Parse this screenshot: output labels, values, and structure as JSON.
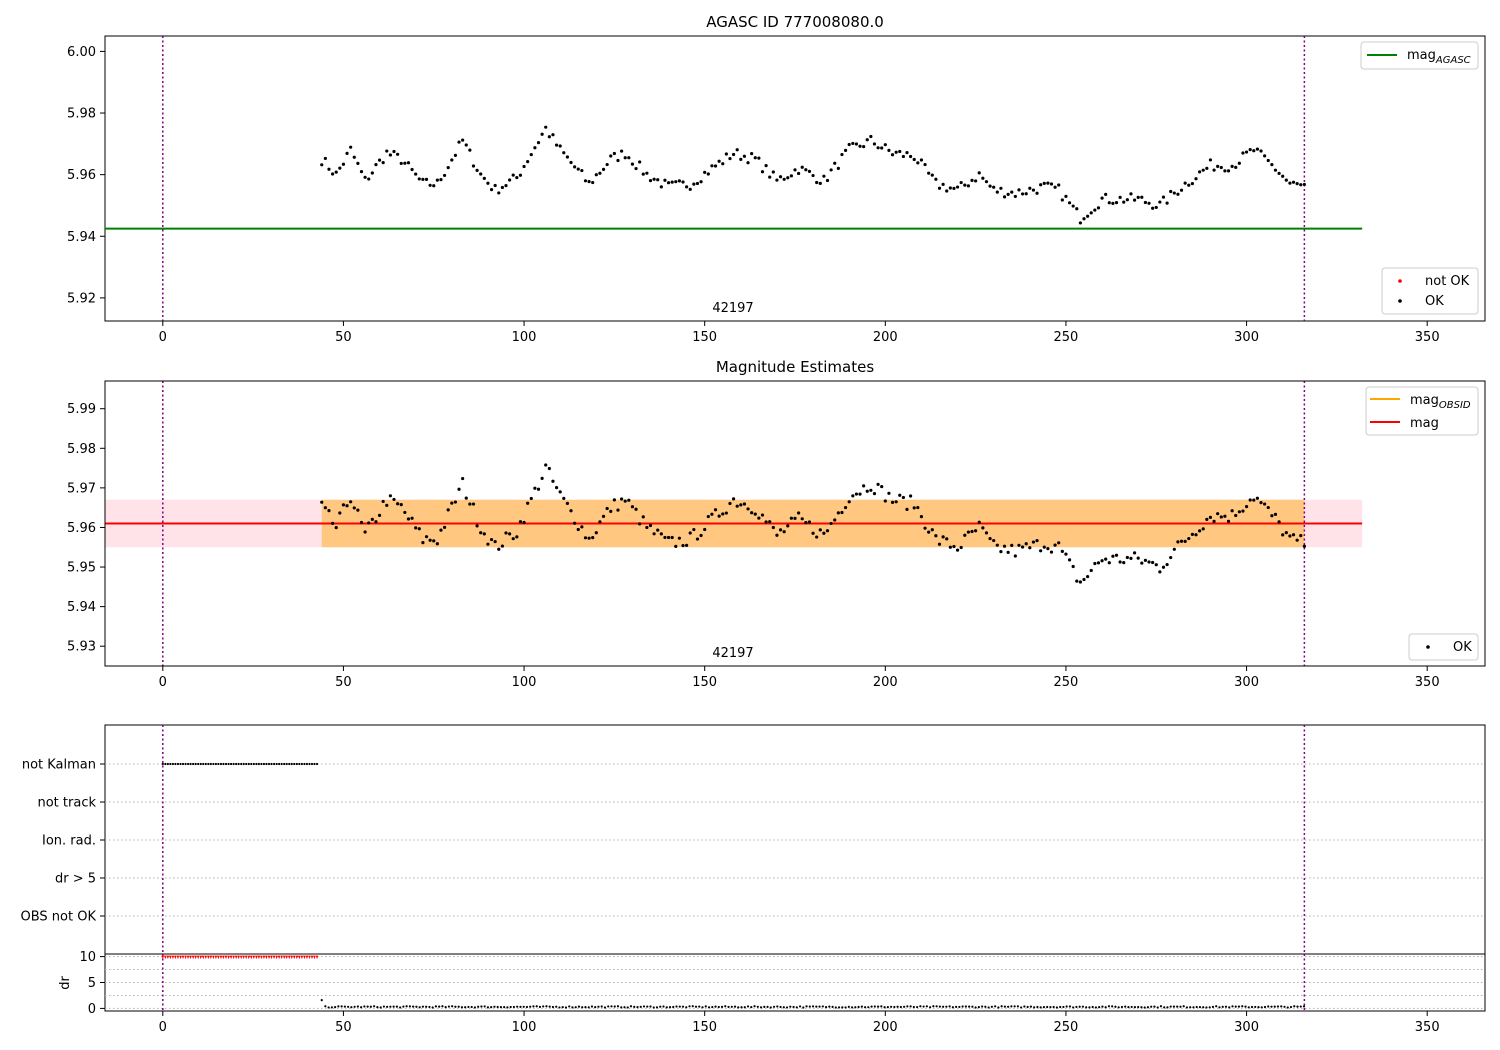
{
  "chart_data": [
    {
      "type": "scatter",
      "title": "AGASC ID 777008080.0",
      "xlim": [
        -16,
        366
      ],
      "ylim": [
        5.9125,
        6.005
      ],
      "xticks": [
        0,
        50,
        100,
        150,
        200,
        250,
        300,
        350
      ],
      "yticks": [
        5.92,
        5.94,
        5.96,
        5.98,
        6.0
      ],
      "ytick_labels": [
        "5.92",
        "5.94",
        "5.96",
        "5.98",
        "6.00"
      ],
      "obsid_label": "42197",
      "vlines": [
        0,
        316
      ],
      "vline_color": "#800080",
      "lines": [
        {
          "name": "mag",
          "name_sub": "AGASC",
          "y": 5.9425,
          "x_range": [
            -16,
            332
          ],
          "color": "#008000"
        }
      ],
      "legend_lines_placement": "upper right",
      "legend_points_placement": "lower right",
      "series": [
        {
          "name": "not OK",
          "color": "#ff0000",
          "x": [],
          "y": []
        },
        {
          "name": "OK",
          "color": "#000000",
          "x_start": 44,
          "x_end": 316,
          "baseline": 5.962,
          "anchors": [
            [
              44,
              5.965
            ],
            [
              48,
              5.96
            ],
            [
              52,
              5.968
            ],
            [
              56,
              5.958
            ],
            [
              62,
              5.967
            ],
            [
              66,
              5.965
            ],
            [
              72,
              5.957
            ],
            [
              76,
              5.957
            ],
            [
              83,
              5.971
            ],
            [
              88,
              5.96
            ],
            [
              92,
              5.955
            ],
            [
              98,
              5.959
            ],
            [
              106,
              5.975
            ],
            [
              110,
              5.968
            ],
            [
              118,
              5.957
            ],
            [
              124,
              5.965
            ],
            [
              128,
              5.967
            ],
            [
              134,
              5.96
            ],
            [
              140,
              5.956
            ],
            [
              146,
              5.957
            ],
            [
              152,
              5.962
            ],
            [
              158,
              5.967
            ],
            [
              164,
              5.965
            ],
            [
              170,
              5.958
            ],
            [
              176,
              5.962
            ],
            [
              183,
              5.958
            ],
            [
              190,
              5.968
            ],
            [
              196,
              5.971
            ],
            [
              202,
              5.967
            ],
            [
              208,
              5.966
            ],
            [
              214,
              5.957
            ],
            [
              220,
              5.955
            ],
            [
              226,
              5.96
            ],
            [
              230,
              5.955
            ],
            [
              236,
              5.954
            ],
            [
              244,
              5.956
            ],
            [
              248,
              5.955
            ],
            [
              254,
              5.946
            ],
            [
              260,
              5.952
            ],
            [
              266,
              5.952
            ],
            [
              270,
              5.952
            ],
            [
              276,
              5.95
            ],
            [
              282,
              5.956
            ],
            [
              290,
              5.963
            ],
            [
              296,
              5.963
            ],
            [
              302,
              5.968
            ],
            [
              308,
              5.962
            ],
            [
              312,
              5.957
            ],
            [
              316,
              5.956
            ]
          ],
          "jitter": 0.0018
        }
      ]
    },
    {
      "type": "scatter",
      "title": "Magnitude Estimates",
      "xlim": [
        -16,
        366
      ],
      "ylim": [
        5.925,
        5.997
      ],
      "xticks": [
        0,
        50,
        100,
        150,
        200,
        250,
        300,
        350
      ],
      "yticks": [
        5.93,
        5.94,
        5.95,
        5.96,
        5.97,
        5.98,
        5.99
      ],
      "ytick_labels": [
        "5.93",
        "5.94",
        "5.95",
        "5.96",
        "5.97",
        "5.98",
        "5.99"
      ],
      "obsid_label": "42197",
      "vlines": [
        0,
        316
      ],
      "vline_color": "#800080",
      "bands": [
        {
          "x_range": [
            -16,
            332
          ],
          "y_range": [
            5.955,
            5.967
          ],
          "color": "#ffc0cb"
        },
        {
          "x_range": [
            44,
            316
          ],
          "y_range": [
            5.955,
            5.967
          ],
          "color": "#ffa500"
        }
      ],
      "lines": [
        {
          "name": "mag",
          "name_sub": "OBSID",
          "y": 5.961,
          "x_range": [
            44,
            316
          ],
          "color": "#ffa500"
        },
        {
          "name": "mag",
          "name_sub": "",
          "y": 5.961,
          "x_range": [
            -16,
            332
          ],
          "color": "#ff0000"
        }
      ],
      "legend_lines_placement": "upper right",
      "legend_points_placement": "lower right",
      "series": [
        {
          "name": "OK",
          "color": "#000000",
          "x_start": 44,
          "x_end": 316,
          "baseline": 5.962,
          "anchors": [
            [
              44,
              5.965
            ],
            [
              48,
              5.96
            ],
            [
              52,
              5.968
            ],
            [
              56,
              5.958
            ],
            [
              62,
              5.967
            ],
            [
              66,
              5.965
            ],
            [
              72,
              5.957
            ],
            [
              76,
              5.957
            ],
            [
              83,
              5.971
            ],
            [
              88,
              5.96
            ],
            [
              92,
              5.955
            ],
            [
              98,
              5.959
            ],
            [
              106,
              5.975
            ],
            [
              110,
              5.968
            ],
            [
              118,
              5.957
            ],
            [
              124,
              5.965
            ],
            [
              128,
              5.967
            ],
            [
              134,
              5.96
            ],
            [
              140,
              5.956
            ],
            [
              146,
              5.957
            ],
            [
              152,
              5.962
            ],
            [
              158,
              5.967
            ],
            [
              164,
              5.965
            ],
            [
              170,
              5.958
            ],
            [
              176,
              5.962
            ],
            [
              183,
              5.958
            ],
            [
              190,
              5.968
            ],
            [
              196,
              5.971
            ],
            [
              202,
              5.967
            ],
            [
              208,
              5.966
            ],
            [
              214,
              5.957
            ],
            [
              220,
              5.955
            ],
            [
              226,
              5.96
            ],
            [
              230,
              5.955
            ],
            [
              236,
              5.954
            ],
            [
              244,
              5.956
            ],
            [
              248,
              5.955
            ],
            [
              254,
              5.946
            ],
            [
              260,
              5.952
            ],
            [
              266,
              5.952
            ],
            [
              270,
              5.952
            ],
            [
              276,
              5.95
            ],
            [
              282,
              5.956
            ],
            [
              290,
              5.963
            ],
            [
              296,
              5.963
            ],
            [
              302,
              5.968
            ],
            [
              308,
              5.962
            ],
            [
              312,
              5.957
            ],
            [
              316,
              5.956
            ]
          ],
          "jitter": 0.0018
        }
      ]
    },
    {
      "type": "scatter",
      "title": "",
      "xlim": [
        -16,
        366
      ],
      "categories": [
        "not Kalman",
        "not track",
        "Ion. rad.",
        "dr > 5",
        "OBS not OK"
      ],
      "vlines": [
        0,
        316
      ],
      "vline_color": "#800080",
      "series": [
        {
          "name": "not Kalman",
          "color": "#000000",
          "x_start": 0,
          "x_end": 43,
          "step": 0.7
        }
      ]
    },
    {
      "type": "scatter",
      "title": "",
      "ylabel": "dr",
      "xlim": [
        -16,
        366
      ],
      "ylim": [
        -0.5,
        10.5
      ],
      "xticks": [
        0,
        50,
        100,
        150,
        200,
        250,
        300,
        350
      ],
      "yticks": [
        0,
        5,
        10
      ],
      "vlines": [
        0,
        316
      ],
      "vline_color": "#800080",
      "series": [
        {
          "name": "dr > 5",
          "color": "#ff0000",
          "x_start": 0,
          "x_end": 43,
          "step": 0.7,
          "value": 9.8
        },
        {
          "name": "dr",
          "color": "#000000",
          "x_start": 44,
          "x_end": 316,
          "step": 0.9,
          "first_value": 1.6,
          "value": 0.3
        }
      ]
    }
  ]
}
